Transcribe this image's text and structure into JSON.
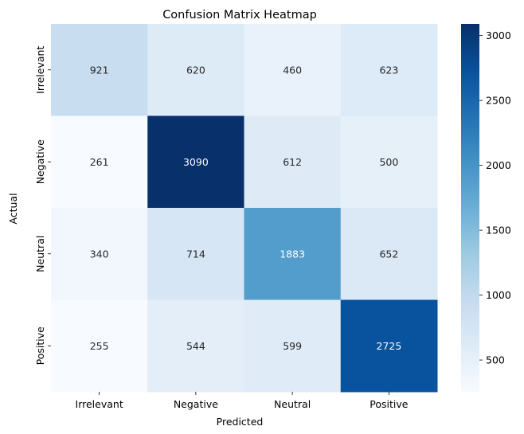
{
  "chart_data": {
    "type": "heatmap",
    "title": "Confusion Matrix Heatmap",
    "xlabel": "Predicted",
    "ylabel": "Actual",
    "x_categories": [
      "Irrelevant",
      "Negative",
      "Neutral",
      "Positive"
    ],
    "y_categories": [
      "Irrelevant",
      "Negative",
      "Neutral",
      "Positive"
    ],
    "values": [
      [
        921,
        620,
        460,
        623
      ],
      [
        261,
        3090,
        612,
        500
      ],
      [
        340,
        714,
        1883,
        652
      ],
      [
        255,
        544,
        599,
        2725
      ]
    ],
    "colormap": "Blues",
    "vmin": 255,
    "vmax": 3090,
    "colorbar_ticks": [
      500,
      1000,
      1500,
      2000,
      2500,
      3000
    ],
    "colorbar_ticks_text": [
      "500",
      "1000",
      "1500",
      "2000",
      "2500",
      "3000"
    ],
    "annotation_colors": {
      "dark": "#262626",
      "light": "#ffffff"
    }
  }
}
